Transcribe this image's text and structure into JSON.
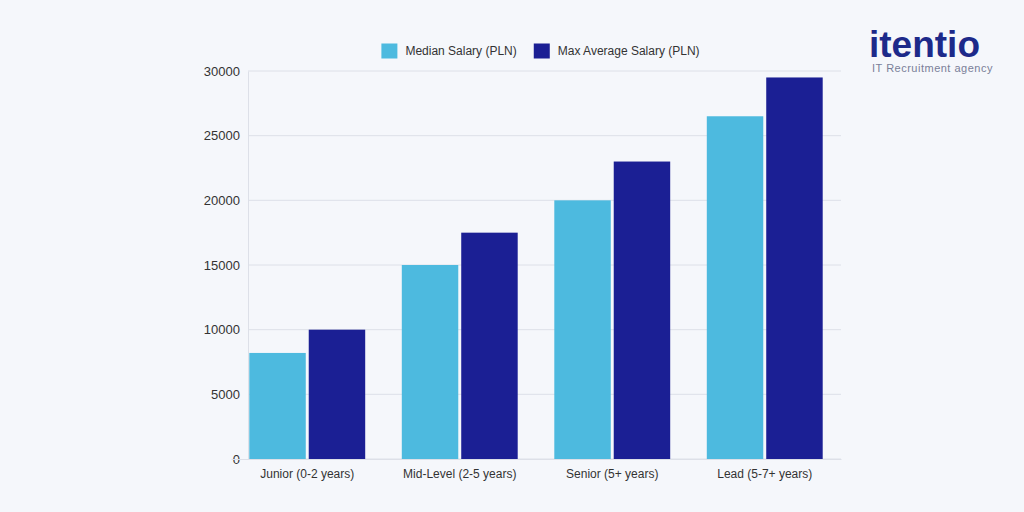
{
  "chart_data": {
    "type": "bar",
    "categories": [
      "Junior (0-2 years)",
      "Mid-Level (2-5 years)",
      "Senior (5+ years)",
      "Lead (5-7+ years)"
    ],
    "series": [
      {
        "name": "Median Salary (PLN)",
        "color": "#4dbadf",
        "values": [
          8200,
          15000,
          20000,
          26500
        ]
      },
      {
        "name": "Max Average Salary (PLN)",
        "color": "#1b1f94",
        "values": [
          10000,
          17500,
          23000,
          29500
        ]
      }
    ],
    "ylim": [
      0,
      30000
    ],
    "yticks": [
      0,
      5000,
      10000,
      15000,
      20000,
      25000,
      30000
    ],
    "grid": true,
    "legend": "top",
    "annotations": [
      "itentio",
      "IT Recruitment agency"
    ]
  }
}
